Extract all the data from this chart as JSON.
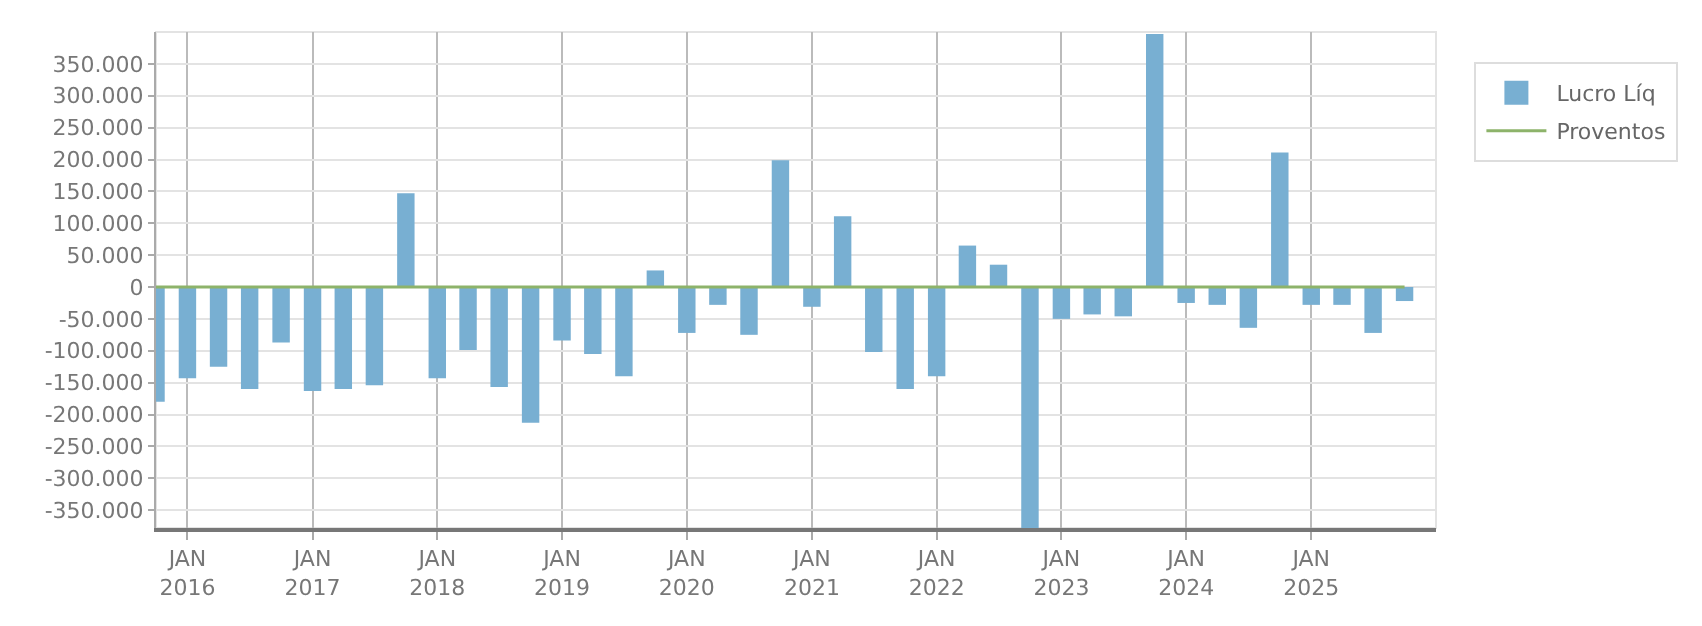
{
  "chart_data": {
    "type": "bar",
    "x": [
      "2015-10",
      "2016-01",
      "2016-04",
      "2016-07",
      "2016-10",
      "2017-01",
      "2017-04",
      "2017-07",
      "2017-10",
      "2018-01",
      "2018-04",
      "2018-07",
      "2018-10",
      "2019-01",
      "2019-04",
      "2019-07",
      "2019-10",
      "2020-01",
      "2020-04",
      "2020-07",
      "2020-10",
      "2021-01",
      "2021-04",
      "2021-07",
      "2021-10",
      "2022-01",
      "2022-04",
      "2022-07",
      "2022-10",
      "2023-01",
      "2023-04",
      "2023-07",
      "2023-10",
      "2024-01",
      "2024-04",
      "2024-07",
      "2024-10",
      "2025-01",
      "2025-04",
      "2025-07",
      "2025-10"
    ],
    "series": [
      {
        "name": "Lucro Líq",
        "color": "#78afd2",
        "values": [
          -180000,
          -143000,
          -125000,
          -160000,
          -87000,
          -163000,
          -160000,
          -154000,
          147000,
          -143000,
          -99000,
          -157000,
          -213000,
          -84000,
          -105000,
          -140000,
          26000,
          -72000,
          -28000,
          -75000,
          199000,
          -31000,
          111000,
          -102000,
          -160000,
          -140000,
          65000,
          35000,
          -378000,
          -50000,
          -43000,
          -46000,
          397000,
          -25000,
          -28000,
          -64000,
          211000,
          -28000,
          -28000,
          -72000,
          -22000
        ]
      },
      {
        "name": "Proventos",
        "type": "line",
        "color": "#8db36a",
        "values": [
          0,
          0,
          0,
          0,
          0,
          0,
          0,
          0,
          0,
          0,
          0,
          0,
          0,
          0,
          0,
          0,
          0,
          0,
          0,
          0,
          0,
          0,
          0,
          0,
          0,
          0,
          0,
          0,
          0,
          0,
          0,
          0,
          0,
          0,
          0,
          0,
          0,
          0,
          0,
          0,
          0
        ]
      }
    ],
    "xlim": [
      "2015-10-01",
      "2026-01-01"
    ],
    "xticks": [
      {
        "value": "2016-01",
        "label": "JAN\n2016"
      },
      {
        "value": "2017-01",
        "label": "JAN\n2017"
      },
      {
        "value": "2018-01",
        "label": "JAN\n2018"
      },
      {
        "value": "2019-01",
        "label": "JAN\n2019"
      },
      {
        "value": "2020-01",
        "label": "JAN\n2020"
      },
      {
        "value": "2021-01",
        "label": "JAN\n2021"
      },
      {
        "value": "2022-01",
        "label": "JAN\n2022"
      },
      {
        "value": "2023-01",
        "label": "JAN\n2023"
      },
      {
        "value": "2024-01",
        "label": "JAN\n2024"
      },
      {
        "value": "2025-01",
        "label": "JAN\n2025"
      }
    ],
    "ylim": [
      -378000,
      400000
    ],
    "yticks": [
      {
        "value": -350000,
        "label": "-350.000"
      },
      {
        "value": -300000,
        "label": "-300.000"
      },
      {
        "value": -250000,
        "label": "-250.000"
      },
      {
        "value": -200000,
        "label": "-200.000"
      },
      {
        "value": -150000,
        "label": "-150.000"
      },
      {
        "value": -100000,
        "label": "-100.000"
      },
      {
        "value": -50000,
        "label": "-50.000"
      },
      0,
      {
        "value": 50000,
        "label": "50.000"
      },
      {
        "value": 100000,
        "label": "100.000"
      },
      {
        "value": 150000,
        "label": "150.000"
      },
      {
        "value": 200000,
        "label": "200.000"
      },
      {
        "value": 250000,
        "label": "250.000"
      },
      {
        "value": 300000,
        "label": "300.000"
      },
      {
        "value": 350000,
        "label": "350.000"
      }
    ],
    "grid": true,
    "legend": "top right"
  }
}
